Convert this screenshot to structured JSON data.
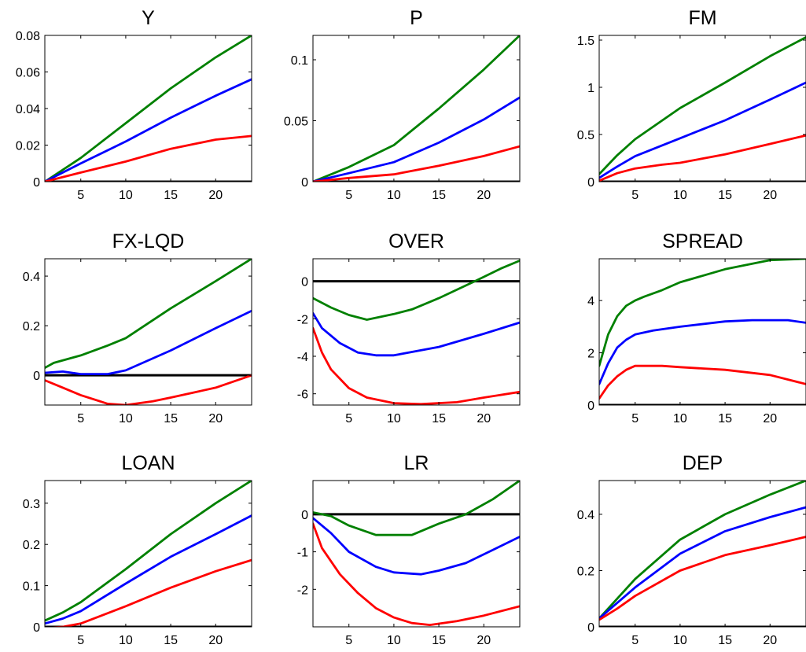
{
  "figure": {
    "colors": {
      "upper": "#008000",
      "median": "#0000ff",
      "lower": "#ff0000",
      "zero": "#000000"
    }
  },
  "chart_data": [
    {
      "type": "line",
      "title": "Y",
      "xlim": [
        1,
        24
      ],
      "ylim": [
        0,
        0.08
      ],
      "xticks": [
        5,
        10,
        15,
        20
      ],
      "yticks": [
        0,
        0.02,
        0.04,
        0.06,
        0.08
      ],
      "ytick_labels": [
        "0",
        "0.02",
        "0.04",
        "0.06",
        "0.08"
      ],
      "zero_line": 0,
      "series": [
        {
          "role": "upper",
          "x": [
            1,
            5,
            10,
            15,
            20,
            24
          ],
          "y": [
            0.0,
            0.013,
            0.032,
            0.051,
            0.068,
            0.08
          ]
        },
        {
          "role": "median",
          "x": [
            1,
            5,
            10,
            15,
            20,
            24
          ],
          "y": [
            0.0,
            0.01,
            0.022,
            0.035,
            0.047,
            0.056
          ]
        },
        {
          "role": "lower",
          "x": [
            1,
            5,
            10,
            15,
            20,
            24
          ],
          "y": [
            0.0,
            0.005,
            0.011,
            0.018,
            0.023,
            0.025
          ]
        }
      ]
    },
    {
      "type": "line",
      "title": "P",
      "xlim": [
        1,
        24
      ],
      "ylim": [
        0,
        0.12
      ],
      "xticks": [
        5,
        10,
        15,
        20
      ],
      "yticks": [
        0,
        0.05,
        0.1
      ],
      "ytick_labels": [
        "0",
        "0.05",
        "0.1"
      ],
      "zero_line": 0,
      "series": [
        {
          "role": "upper",
          "x": [
            1,
            5,
            10,
            15,
            20,
            24
          ],
          "y": [
            0.0,
            0.012,
            0.03,
            0.06,
            0.092,
            0.12
          ]
        },
        {
          "role": "median",
          "x": [
            1,
            5,
            10,
            15,
            20,
            24
          ],
          "y": [
            0.0,
            0.007,
            0.016,
            0.032,
            0.051,
            0.069
          ]
        },
        {
          "role": "lower",
          "x": [
            1,
            5,
            10,
            15,
            20,
            24
          ],
          "y": [
            0.0,
            0.003,
            0.006,
            0.013,
            0.021,
            0.029
          ]
        }
      ]
    },
    {
      "type": "line",
      "title": "FM",
      "xlim": [
        1,
        24
      ],
      "ylim": [
        0,
        1.55
      ],
      "xticks": [
        5,
        10,
        15,
        20
      ],
      "yticks": [
        0,
        0.5,
        1,
        1.5
      ],
      "ytick_labels": [
        "0",
        "0.5",
        "1",
        "1.5"
      ],
      "zero_line": 0,
      "series": [
        {
          "role": "upper",
          "x": [
            1,
            3,
            5,
            10,
            15,
            20,
            24
          ],
          "y": [
            0.08,
            0.28,
            0.45,
            0.78,
            1.05,
            1.33,
            1.53
          ]
        },
        {
          "role": "median",
          "x": [
            1,
            3,
            5,
            10,
            15,
            20,
            24
          ],
          "y": [
            0.04,
            0.16,
            0.27,
            0.46,
            0.65,
            0.87,
            1.05
          ]
        },
        {
          "role": "lower",
          "x": [
            1,
            3,
            5,
            8,
            10,
            15,
            20,
            24
          ],
          "y": [
            0.01,
            0.09,
            0.14,
            0.18,
            0.2,
            0.29,
            0.4,
            0.49
          ]
        }
      ]
    },
    {
      "type": "line",
      "title": "FX-LQD",
      "xlim": [
        1,
        24
      ],
      "ylim": [
        -0.12,
        0.47
      ],
      "xticks": [
        5,
        10,
        15,
        20
      ],
      "yticks": [
        0,
        0.2,
        0.4
      ],
      "ytick_labels": [
        "0",
        "0.2",
        "0.4"
      ],
      "zero_line": 0,
      "series": [
        {
          "role": "upper",
          "x": [
            1,
            2,
            5,
            8,
            10,
            15,
            20,
            24
          ],
          "y": [
            0.03,
            0.05,
            0.08,
            0.12,
            0.15,
            0.27,
            0.38,
            0.47
          ]
        },
        {
          "role": "median",
          "x": [
            1,
            3,
            5,
            8,
            10,
            15,
            20,
            24
          ],
          "y": [
            0.01,
            0.015,
            0.005,
            0.005,
            0.02,
            0.1,
            0.19,
            0.26
          ]
        },
        {
          "role": "lower",
          "x": [
            1,
            3,
            5,
            8,
            10,
            13,
            15,
            20,
            24
          ],
          "y": [
            -0.02,
            -0.05,
            -0.08,
            -0.115,
            -0.12,
            -0.105,
            -0.09,
            -0.05,
            0.0
          ]
        }
      ]
    },
    {
      "type": "line",
      "title": "OVER",
      "xlim": [
        1,
        24
      ],
      "ylim": [
        -6.6,
        1.2
      ],
      "xticks": [
        5,
        10,
        15,
        20
      ],
      "yticks": [
        -6,
        -4,
        -2,
        0
      ],
      "ytick_labels": [
        "-6",
        "-4",
        "-2",
        "0"
      ],
      "zero_line": 0,
      "series": [
        {
          "role": "upper",
          "x": [
            1,
            3,
            5,
            7,
            10,
            12,
            15,
            19,
            22,
            24
          ],
          "y": [
            -0.9,
            -1.4,
            -1.8,
            -2.05,
            -1.75,
            -1.5,
            -0.9,
            0.0,
            0.7,
            1.1
          ]
        },
        {
          "role": "median",
          "x": [
            1,
            2,
            4,
            6,
            8,
            10,
            15,
            20,
            24
          ],
          "y": [
            -1.7,
            -2.5,
            -3.3,
            -3.8,
            -3.95,
            -3.95,
            -3.5,
            -2.8,
            -2.2
          ]
        },
        {
          "role": "lower",
          "x": [
            1,
            2,
            3,
            5,
            7,
            10,
            13,
            17,
            20,
            24
          ],
          "y": [
            -2.5,
            -3.8,
            -4.7,
            -5.7,
            -6.2,
            -6.5,
            -6.55,
            -6.45,
            -6.2,
            -5.9
          ]
        }
      ]
    },
    {
      "type": "line",
      "title": "SPREAD",
      "xlim": [
        1,
        24
      ],
      "ylim": [
        0,
        5.6
      ],
      "xticks": [
        5,
        10,
        15,
        20
      ],
      "yticks": [
        0,
        2,
        4
      ],
      "ytick_labels": [
        "0",
        "2",
        "4"
      ],
      "zero_line": 0,
      "series": [
        {
          "role": "upper",
          "x": [
            1,
            2,
            3,
            4,
            5,
            6,
            8,
            10,
            15,
            20,
            24
          ],
          "y": [
            1.5,
            2.7,
            3.4,
            3.8,
            4.0,
            4.15,
            4.4,
            4.7,
            5.2,
            5.55,
            5.6
          ]
        },
        {
          "role": "median",
          "x": [
            1,
            2,
            3,
            4,
            5,
            7,
            10,
            15,
            18,
            22,
            24
          ],
          "y": [
            0.8,
            1.6,
            2.2,
            2.5,
            2.7,
            2.85,
            3.0,
            3.2,
            3.25,
            3.25,
            3.15
          ]
        },
        {
          "role": "lower",
          "x": [
            1,
            2,
            3,
            4,
            5,
            8,
            10,
            15,
            20,
            24
          ],
          "y": [
            0.25,
            0.75,
            1.1,
            1.35,
            1.5,
            1.5,
            1.45,
            1.35,
            1.15,
            0.8
          ]
        }
      ]
    },
    {
      "type": "line",
      "title": "LOAN",
      "xlim": [
        1,
        24
      ],
      "ylim": [
        0,
        0.355
      ],
      "xticks": [
        5,
        10,
        15,
        20
      ],
      "yticks": [
        0,
        0.1,
        0.2,
        0.3
      ],
      "ytick_labels": [
        "0",
        "0.1",
        "0.2",
        "0.3"
      ],
      "zero_line": 0,
      "series": [
        {
          "role": "upper",
          "x": [
            1,
            3,
            5,
            10,
            15,
            20,
            24
          ],
          "y": [
            0.015,
            0.035,
            0.06,
            0.14,
            0.225,
            0.3,
            0.355
          ]
        },
        {
          "role": "median",
          "x": [
            1,
            3,
            5,
            10,
            15,
            20,
            24
          ],
          "y": [
            0.008,
            0.02,
            0.038,
            0.105,
            0.17,
            0.225,
            0.27
          ]
        },
        {
          "role": "lower",
          "x": [
            1,
            3,
            5,
            10,
            15,
            20,
            24
          ],
          "y": [
            -0.003,
            0.0,
            0.008,
            0.05,
            0.095,
            0.135,
            0.162
          ]
        }
      ]
    },
    {
      "type": "line",
      "title": "LR",
      "xlim": [
        1,
        24
      ],
      "ylim": [
        -3.0,
        0.9
      ],
      "xticks": [
        5,
        10,
        15,
        20
      ],
      "yticks": [
        -2,
        -1,
        0
      ],
      "ytick_labels": [
        "-2",
        "-1",
        "0"
      ],
      "zero_line": 0,
      "series": [
        {
          "role": "upper",
          "x": [
            1,
            3,
            5,
            8,
            12,
            15,
            18,
            21,
            24
          ],
          "y": [
            0.05,
            -0.05,
            -0.3,
            -0.55,
            -0.55,
            -0.25,
            0.0,
            0.4,
            0.9
          ]
        },
        {
          "role": "median",
          "x": [
            1,
            3,
            5,
            8,
            10,
            13,
            15,
            18,
            21,
            24
          ],
          "y": [
            -0.1,
            -0.5,
            -1.0,
            -1.4,
            -1.55,
            -1.6,
            -1.5,
            -1.3,
            -0.95,
            -0.6
          ]
        },
        {
          "role": "lower",
          "x": [
            1,
            2,
            4,
            6,
            8,
            10,
            12,
            14,
            17,
            20,
            24
          ],
          "y": [
            -0.25,
            -0.9,
            -1.6,
            -2.1,
            -2.5,
            -2.75,
            -2.9,
            -2.95,
            -2.85,
            -2.7,
            -2.45
          ]
        }
      ]
    },
    {
      "type": "line",
      "title": "DEP",
      "xlim": [
        1,
        24
      ],
      "ylim": [
        0,
        0.52
      ],
      "xticks": [
        5,
        10,
        15,
        20
      ],
      "yticks": [
        0,
        0.2,
        0.4
      ],
      "ytick_labels": [
        "0",
        "0.2",
        "0.4"
      ],
      "zero_line": 0,
      "series": [
        {
          "role": "upper",
          "x": [
            1,
            3,
            5,
            10,
            15,
            20,
            24
          ],
          "y": [
            0.03,
            0.1,
            0.17,
            0.31,
            0.4,
            0.47,
            0.52
          ]
        },
        {
          "role": "median",
          "x": [
            1,
            3,
            5,
            10,
            15,
            20,
            24
          ],
          "y": [
            0.03,
            0.085,
            0.14,
            0.26,
            0.34,
            0.39,
            0.425
          ]
        },
        {
          "role": "lower",
          "x": [
            1,
            3,
            5,
            10,
            15,
            20,
            24
          ],
          "y": [
            0.025,
            0.065,
            0.11,
            0.2,
            0.255,
            0.29,
            0.32
          ]
        }
      ]
    }
  ]
}
